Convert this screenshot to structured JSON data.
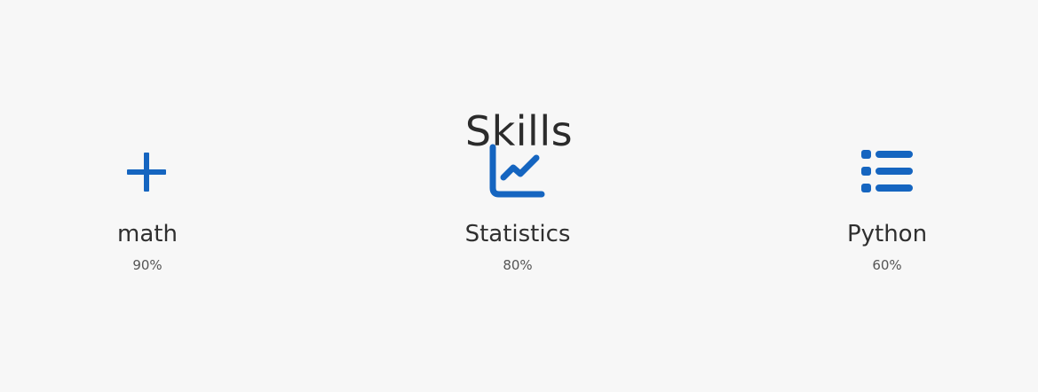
{
  "section": {
    "title": "Skills"
  },
  "accent_color": "#1565c0",
  "skills": [
    {
      "name": "math",
      "level": "90%",
      "icon": "plus-icon"
    },
    {
      "name": "Statistics",
      "level": "80%",
      "icon": "line-chart-icon"
    },
    {
      "name": "Python",
      "level": "60%",
      "icon": "list-icon"
    }
  ]
}
